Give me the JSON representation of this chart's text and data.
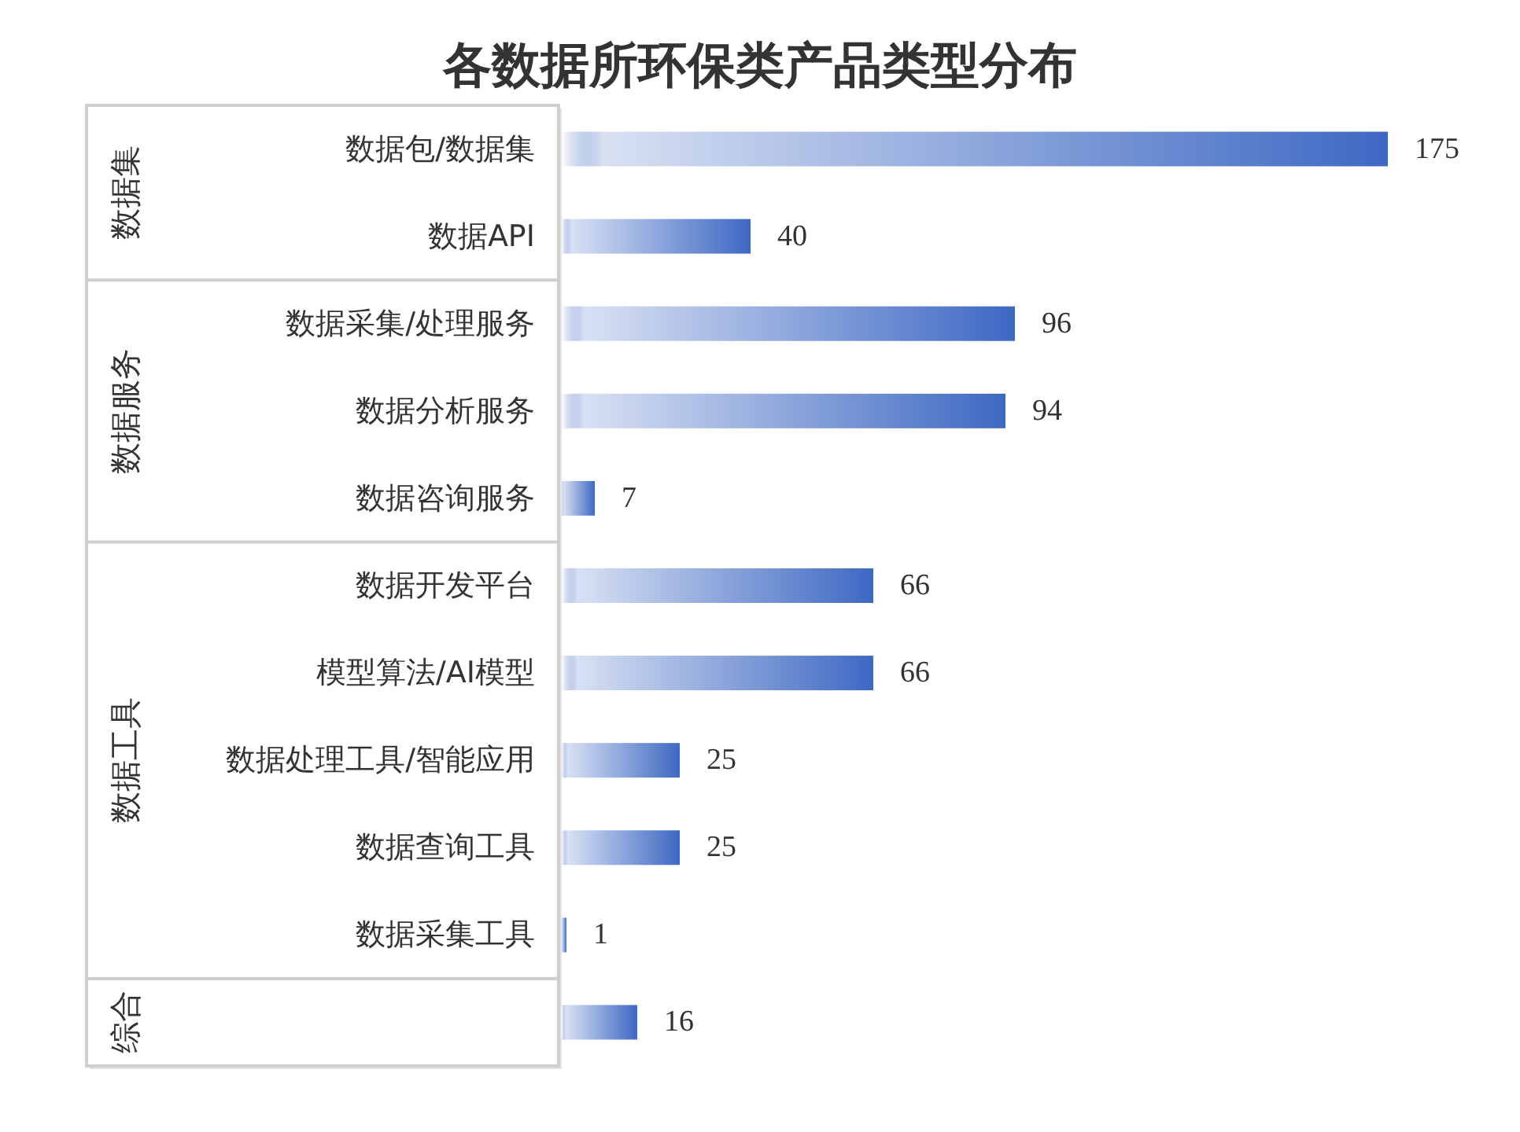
{
  "chart_data": {
    "type": "bar",
    "orientation": "horizontal",
    "title": "各数据所环保类产品类型分布",
    "categories": [
      "数据包/数据集",
      "数据API",
      "数据采集/处理服务",
      "数据分析服务",
      "数据咨询服务",
      "数据开发平台",
      "模型算法/AI模型",
      "数据处理工具/智能应用",
      "数据查询工具",
      "数据采集工具",
      null
    ],
    "values": [
      175,
      40,
      96,
      94,
      7,
      66,
      66,
      25,
      25,
      1,
      16
    ],
    "color": "#3d68c3",
    "data_labels": true,
    "annotations": [
      "数据集",
      "数据服务",
      "数据工具",
      "综合"
    ]
  }
}
